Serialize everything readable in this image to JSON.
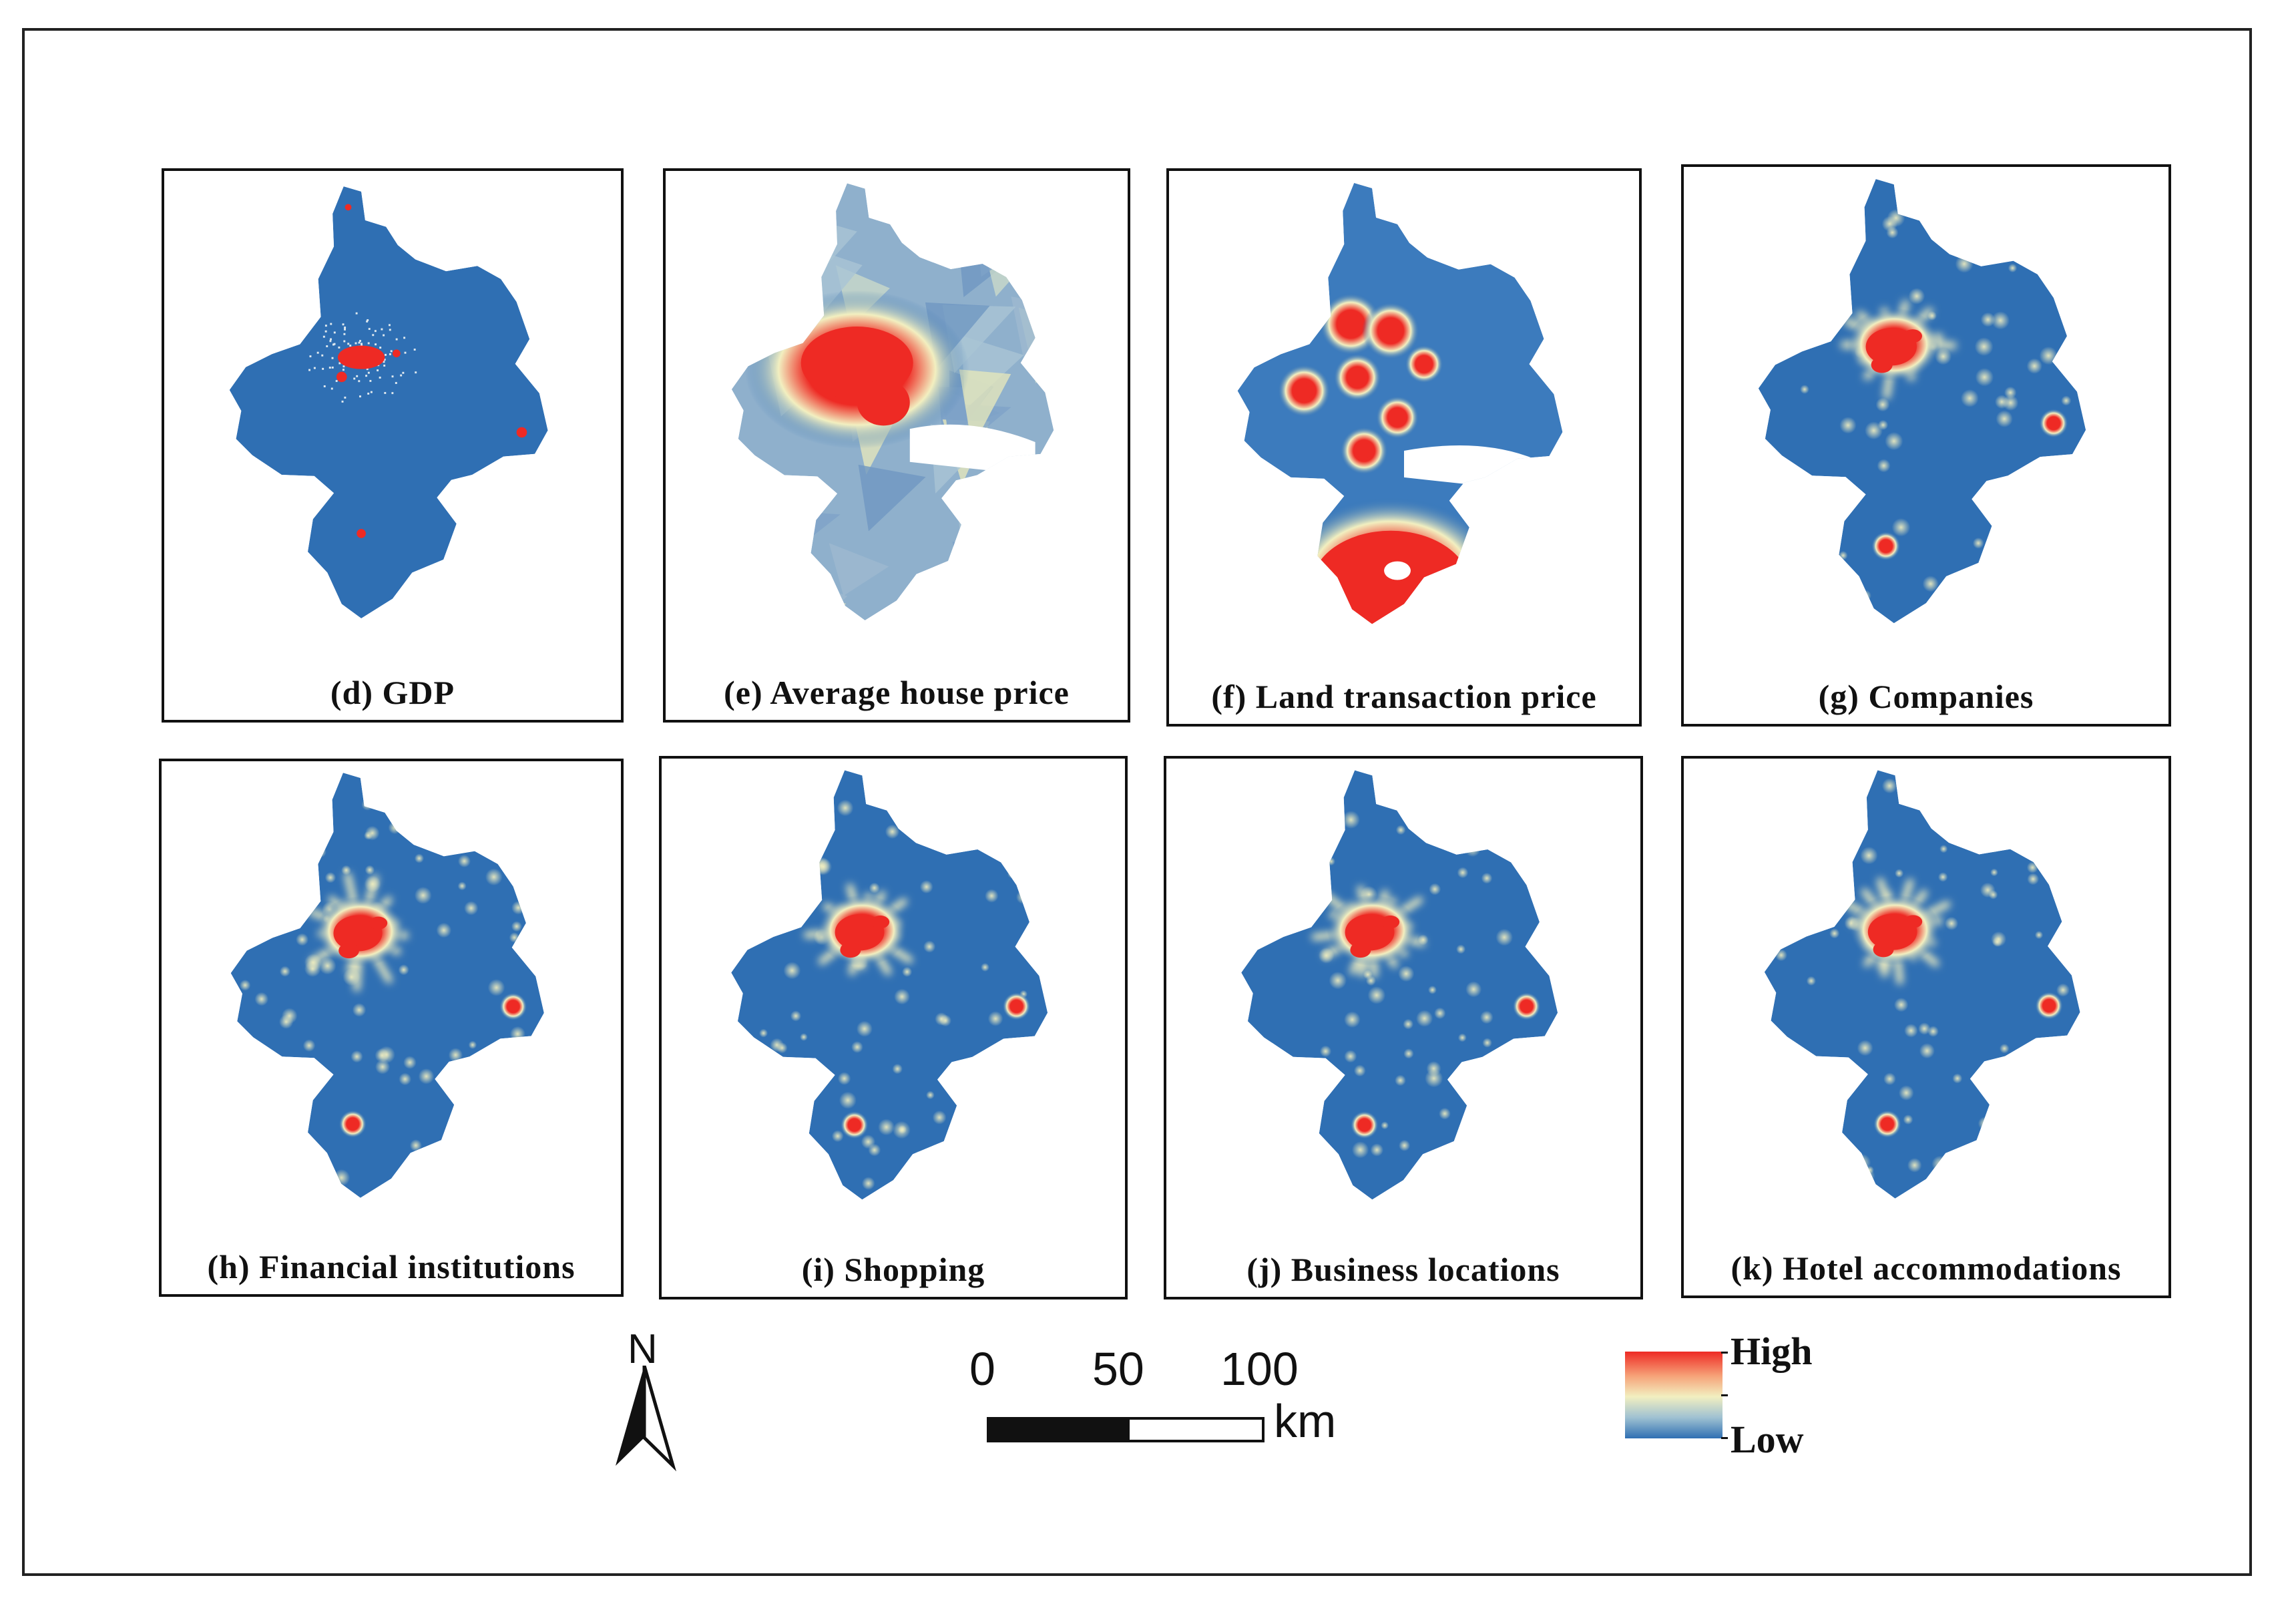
{
  "panels": [
    {
      "id": "d",
      "label": "(d) GDP",
      "pattern": "gdp"
    },
    {
      "id": "e",
      "label": "(e) Average house price",
      "pattern": "house"
    },
    {
      "id": "f",
      "label": "(f) Land transaction price",
      "pattern": "land"
    },
    {
      "id": "g",
      "label": "(g) Companies",
      "pattern": "kernel"
    },
    {
      "id": "h",
      "label": "(h) Financial institutions",
      "pattern": "kernel"
    },
    {
      "id": "i",
      "label": "(i)  Shopping",
      "pattern": "kernel"
    },
    {
      "id": "j",
      "label": "(j) Business locations",
      "pattern": "kernel"
    },
    {
      "id": "k",
      "label": "(k) Hotel accommodations",
      "pattern": "kernel"
    }
  ],
  "north_arrow": {
    "letter": "N"
  },
  "scale_bar": {
    "ticks": [
      "0",
      "50",
      "100"
    ],
    "unit": "km"
  },
  "legend": {
    "high": "High",
    "low": "Low"
  },
  "colors": {
    "low": "#2f6fb3",
    "mid": "#f2efc0",
    "high": "#ee2a24"
  }
}
